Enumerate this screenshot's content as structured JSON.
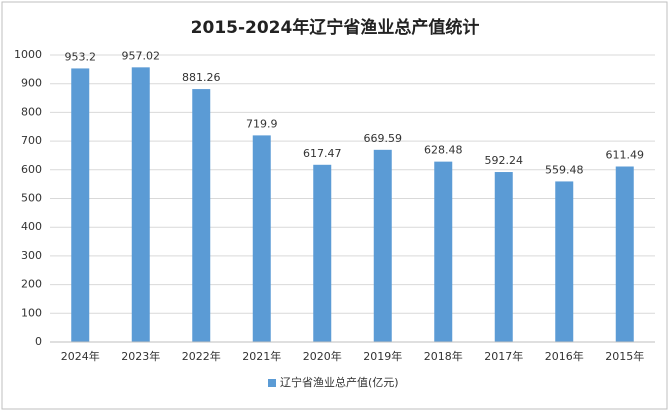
{
  "chart_data": {
    "type": "bar",
    "title": "2015-2024年辽宁省渔业总产值统计",
    "categories": [
      "2024年",
      "2023年",
      "2022年",
      "2021年",
      "2020年",
      "2019年",
      "2018年",
      "2017年",
      "2016年",
      "2015年"
    ],
    "series": [
      {
        "name": "辽宁省渔业总产值(亿元)",
        "color": "#5b9bd5",
        "values": [
          953.2,
          957.02,
          881.26,
          719.9,
          617.47,
          669.59,
          628.48,
          592.24,
          559.48,
          611.49
        ]
      }
    ],
    "ylim": [
      0,
      1000
    ],
    "yticks": [
      0,
      100,
      200,
      300,
      400,
      500,
      600,
      700,
      800,
      900,
      1000
    ],
    "grid": true,
    "legend": "bottom"
  }
}
